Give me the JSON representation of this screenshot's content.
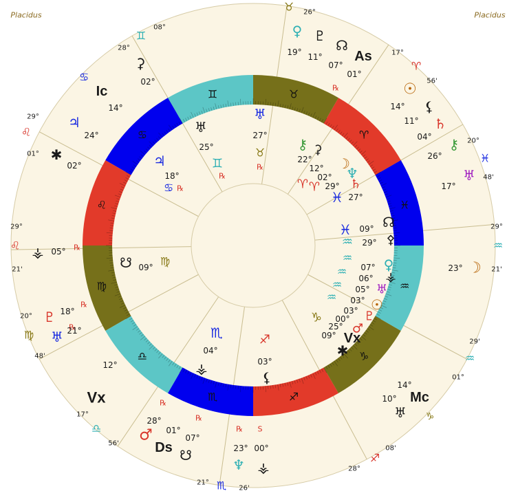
{
  "signs": [
    "♈",
    "♉",
    "♊",
    "♋",
    "♌",
    "♍",
    "♎",
    "♏",
    "♐",
    "♑",
    "♒",
    "♓"
  ],
  "labels": [
    "Placidus",
    "Placidus",
    "08°",
    "♊",
    "28°",
    "♋",
    "29°",
    "♌",
    "01°",
    "29°",
    "♌",
    "21'",
    "20°",
    "♍",
    "48'",
    "17°",
    "♎",
    "56'",
    "21°",
    "♏",
    "26'",
    "08'",
    "♐",
    "28°",
    "29'",
    "♒",
    "01°",
    "29°",
    "♒",
    "21'",
    "20°",
    "♓",
    "48'",
    "17°",
    "♈",
    "56'",
    "26°",
    "♉",
    "♀",
    "19°",
    "♇",
    "11°",
    "☊",
    "07°",
    "As",
    "01°",
    "℞",
    "☉",
    "14°",
    "⚸",
    "11°",
    "♄",
    "04°",
    "⚷",
    "26°",
    "♅",
    "17°",
    "23°",
    "☽",
    "14°",
    "10°",
    "Mc",
    "♅",
    "♑",
    "℞",
    "S",
    "23°",
    "00°",
    "♆",
    "⚶",
    "℞",
    "℞",
    "28°",
    "01°",
    "07°",
    "♂",
    "Ds",
    "☋",
    "12°",
    "Vx",
    "℞",
    "♇",
    "18°",
    "℞",
    "♅",
    "21°",
    "⚶",
    "05°",
    "℞",
    "✱",
    "02°",
    "♃",
    "24°",
    "Ic",
    "14°",
    "⚳",
    "02°",
    "♅",
    "27°",
    "♉",
    "℞",
    "♅",
    "25°",
    "♊",
    "℞",
    "♃",
    "18°",
    "♋",
    "℞",
    "☋",
    "09°",
    "♍",
    "♏",
    "04°",
    "⚶",
    "♐",
    "03°",
    "⚸",
    "⚷",
    "⚳",
    "22°",
    "☽",
    "12°",
    "♆",
    "02°",
    "♈",
    "♈",
    "29°",
    "♄",
    "♓",
    "27°",
    "♓",
    "09°",
    "☊",
    "♒",
    "29°",
    "⚴",
    "07°",
    "06°",
    "05°",
    "03°",
    "03°",
    "00°",
    "25°",
    "09°",
    "♀",
    "⚶",
    "♅",
    "☉",
    "♇",
    "♂",
    "Vx",
    "✱",
    "♑",
    "♒",
    "♒",
    "♒",
    "♒"
  ]
}
